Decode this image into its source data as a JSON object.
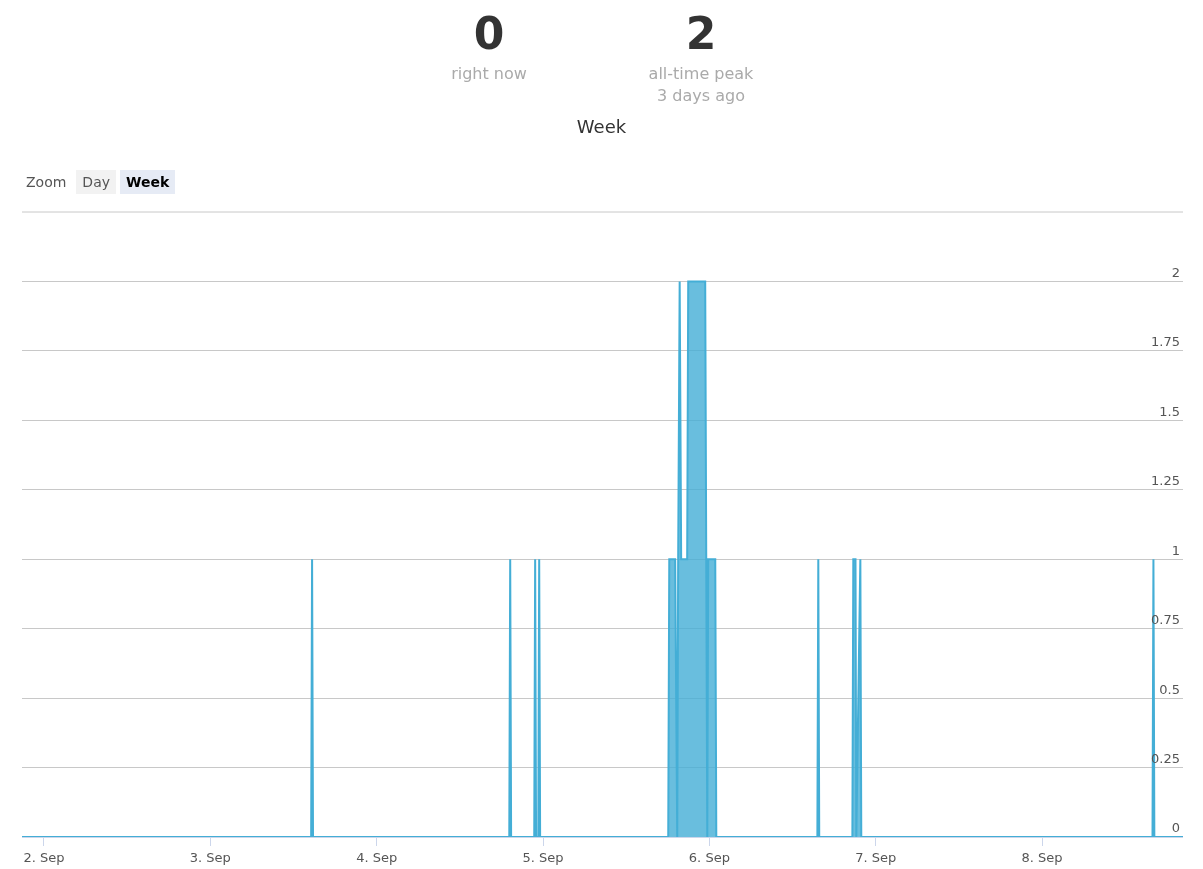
{
  "chart_data": {
    "type": "area",
    "title": "Week",
    "annotations": [
      "0",
      "right now",
      "2",
      "all-time peak",
      "3 days ago",
      "Zoom",
      "Day",
      "Week"
    ],
    "x": [
      "--09-01T20:50",
      "--09-03T14:33",
      "--09-03T14:41",
      "--09-03T14:49",
      "--09-04T19:08",
      "--09-04T19:16",
      "--09-04T19:24",
      "--09-04T22:44",
      "--09-04T22:52",
      "--09-04T23:00",
      "--09-04T23:19",
      "--09-04T23:27",
      "--09-04T23:35",
      "--09-05T18:04",
      "--09-05T18:13",
      "--09-05T19:04",
      "--09-05T19:22",
      "--09-05T19:30",
      "--09-05T19:43",
      "--09-05T19:56",
      "--09-05T20:48",
      "--09-05T20:57",
      "--09-05T23:24",
      "--09-05T23:33",
      "--09-05T23:42",
      "--09-05T23:50",
      "--09-06T00:51",
      "--09-06T01:00",
      "--09-06T15:35",
      "--09-06T15:43",
      "--09-06T15:51",
      "--09-06T20:38",
      "--09-06T20:46",
      "--09-06T21:05",
      "--09-06T21:12",
      "--09-06T21:47",
      "--09-06T21:55",
      "--09-08T15:56",
      "--09-08T16:04",
      "--09-08T16:12",
      "--09-08T20:20"
    ],
    "series": [
      {
        "color": "#44aed6",
        "values": [
          0,
          0,
          1,
          0,
          0,
          1,
          0,
          0,
          1,
          0,
          0,
          1,
          0,
          0,
          1,
          1,
          0,
          1,
          2,
          1,
          1,
          2,
          2,
          1,
          0,
          1,
          1,
          0,
          0,
          1,
          0,
          0,
          1,
          1,
          0,
          1,
          0,
          0,
          1,
          0,
          0
        ]
      }
    ],
    "xlim": [
      "--09-01T20:50",
      "--09-08T20:20"
    ],
    "xticks": [
      {
        "value": "--09-02",
        "label": "2. Sep"
      },
      {
        "value": "--09-03",
        "label": "3. Sep"
      },
      {
        "value": "--09-04",
        "label": "4. Sep"
      },
      {
        "value": "--09-05",
        "label": "5. Sep"
      },
      {
        "value": "--09-06",
        "label": "6. Sep"
      },
      {
        "value": "--09-07",
        "label": "7. Sep"
      },
      {
        "value": "--09-08",
        "label": "8. Sep"
      }
    ],
    "ylim": [
      0,
      2.25
    ],
    "yticks": [
      0,
      0.25,
      0.5,
      0.75,
      1,
      1.25,
      1.5,
      1.75,
      2
    ],
    "grid": "y",
    "marker": "none",
    "line_style": "solid"
  }
}
